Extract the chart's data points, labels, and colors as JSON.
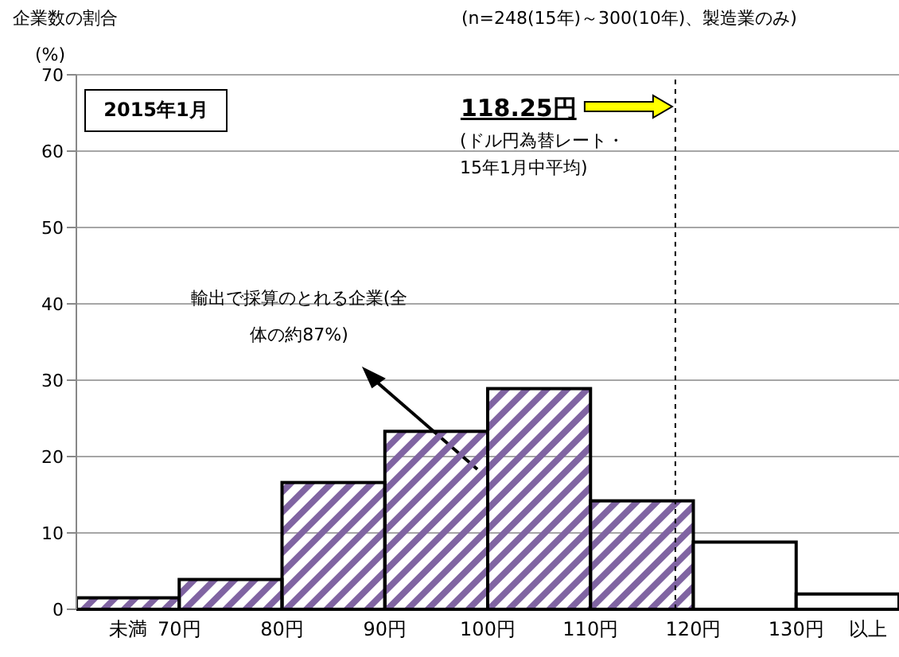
{
  "chart_data": {
    "type": "histogram",
    "title": "企業数の割合",
    "subtitle": "(n=248(15年)～300(10年)、製造業のみ)",
    "ylabel": "(%)",
    "bins": [
      60,
      70,
      80,
      90,
      100,
      110,
      120,
      130,
      140
    ],
    "values": [
      1.5,
      3.9,
      16.6,
      23.3,
      28.9,
      14.2,
      8.8,
      2.0
    ],
    "colors": [
      "#8064a2",
      "#8064a2",
      "#8064a2",
      "#8064a2",
      "#8064a2",
      "#8064a2",
      "#ffffff",
      "#ffffff"
    ],
    "xlim": [
      60,
      140
    ],
    "xticks": [
      {
        "value": 65,
        "label": "未満"
      },
      {
        "value": 70,
        "label": "70円"
      },
      {
        "value": 80,
        "label": "80円"
      },
      {
        "value": 90,
        "label": "90円"
      },
      {
        "value": 100,
        "label": "100円"
      },
      {
        "value": 110,
        "label": "110円"
      },
      {
        "value": 120,
        "label": "120円"
      },
      {
        "value": 130,
        "label": "130円"
      },
      {
        "value": 137,
        "label": "以上"
      }
    ],
    "ylim": [
      0,
      70
    ],
    "yticks": [
      0,
      10,
      20,
      30,
      40,
      50,
      60,
      70
    ],
    "grid": "y",
    "ref_lines": [
      {
        "axis": "x",
        "value": 118.25,
        "label": "118.25円",
        "color": "#000000",
        "line_style": "dashed"
      }
    ],
    "annotations": [
      "2015年1月",
      "(ドル円為替レート・15年1月中平均)",
      "輸出で採算のとれる企業(全体の約87%)"
    ]
  }
}
